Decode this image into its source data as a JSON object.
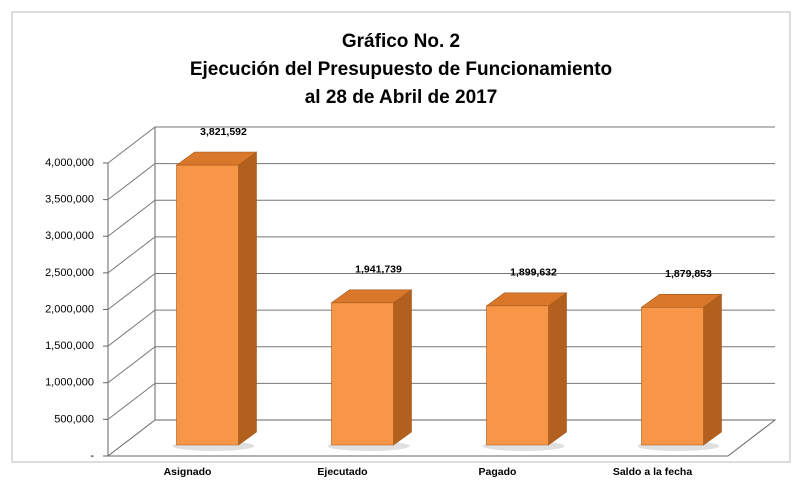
{
  "chart_data": {
    "type": "bar3d",
    "title": [
      "Gráfico No. 2",
      "Ejecución del Presupuesto de Funcionamiento",
      "al 28 de Abril de 2017"
    ],
    "categories": [
      "Asignado",
      "Ejecutado",
      "Pagado",
      "Saldo a la fecha"
    ],
    "values": [
      3821592,
      1941739,
      1899632,
      1879853
    ],
    "value_labels": [
      "3,821,592",
      "1,941,739",
      "1,899,632",
      "1,879,853"
    ],
    "color": "#f79646",
    "ylim": [
      0,
      4000000
    ],
    "yticks": [
      {
        "value": 0,
        "label": "-"
      },
      {
        "value": 500000,
        "label": "500,000"
      },
      {
        "value": 1000000,
        "label": "1,000,000"
      },
      {
        "value": 1500000,
        "label": "1,500,000"
      },
      {
        "value": 2000000,
        "label": "2,000,000"
      },
      {
        "value": 2500000,
        "label": "2,500,000"
      },
      {
        "value": 3000000,
        "label": "3,000,000"
      },
      {
        "value": 3500000,
        "label": "3,500,000"
      },
      {
        "value": 4000000,
        "label": "4,000,000"
      }
    ],
    "grid": true
  }
}
